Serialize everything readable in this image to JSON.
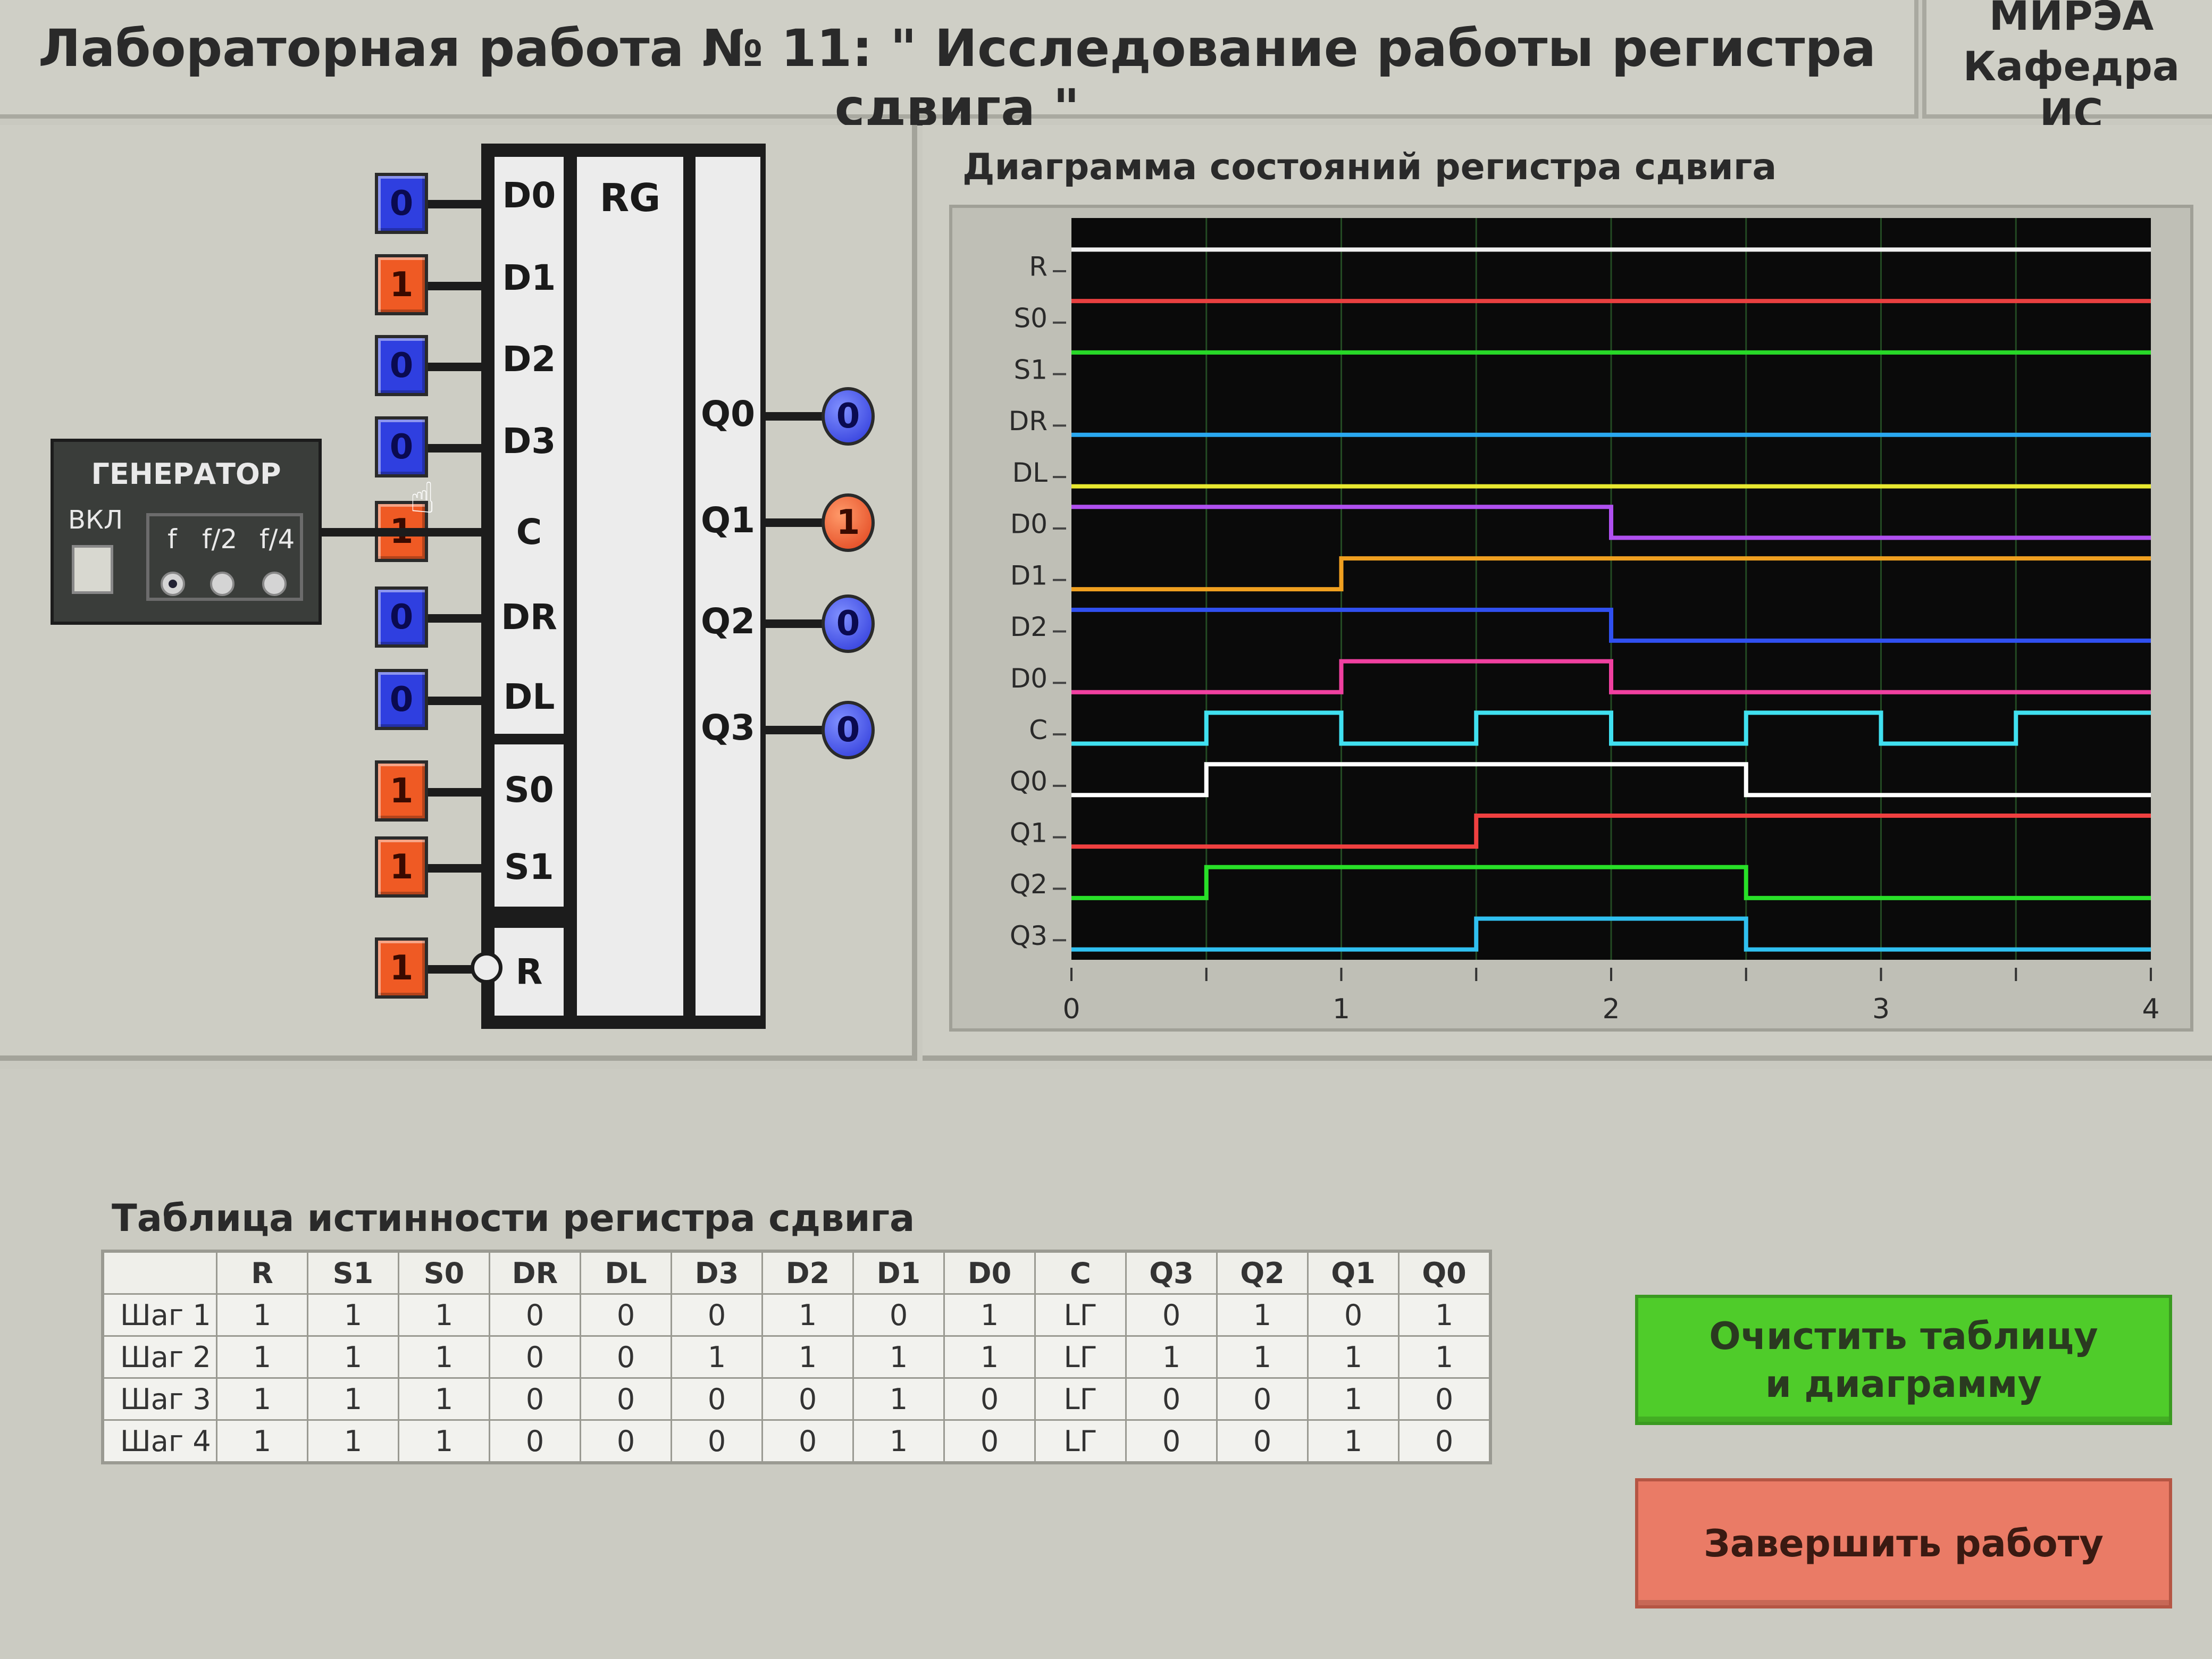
{
  "header": {
    "title": "Лабораторная работа № 11: \" Исследование работы регистра сдвига \"",
    "org_line1": "МИРЭА",
    "org_line2": "Кафедра ИС"
  },
  "generator": {
    "title": "ГЕНЕРАТОР",
    "switch_label": "ВКЛ",
    "freq_options": [
      "f",
      "f/2",
      "f/4"
    ],
    "selected": "f"
  },
  "register": {
    "name": "RG",
    "inputs": [
      {
        "pin": "D0",
        "value": "0"
      },
      {
        "pin": "D1",
        "value": "1"
      },
      {
        "pin": "D2",
        "value": "0"
      },
      {
        "pin": "D3",
        "value": "0"
      },
      {
        "pin": "C",
        "value": "1"
      },
      {
        "pin": "DR",
        "value": "0"
      },
      {
        "pin": "DL",
        "value": "0"
      },
      {
        "pin": "S0",
        "value": "1"
      },
      {
        "pin": "S1",
        "value": "1"
      },
      {
        "pin": "R",
        "value": "1"
      }
    ],
    "outputs": [
      {
        "pin": "Q0",
        "value": "0"
      },
      {
        "pin": "Q1",
        "value": "1"
      },
      {
        "pin": "Q2",
        "value": "0"
      },
      {
        "pin": "Q3",
        "value": "0"
      }
    ]
  },
  "chart_data": {
    "type": "line",
    "title": "Диаграмма состояний регистра сдвига",
    "xlim": [
      0,
      4
    ],
    "x_ticks": [
      "0",
      "1",
      "2",
      "3",
      "4"
    ],
    "signal_labels": [
      "R",
      "S0",
      "S1",
      "DR",
      "DL",
      "D0",
      "D1",
      "D2",
      "D0",
      "C",
      "Q0",
      "Q1",
      "Q2",
      "Q3"
    ],
    "series": [
      {
        "name": "R",
        "color": "#f0f0f0",
        "steps": [
          [
            0,
            1
          ],
          [
            4,
            1
          ]
        ]
      },
      {
        "name": "S0",
        "color": "#e84040",
        "steps": [
          [
            0,
            1
          ],
          [
            4,
            1
          ]
        ]
      },
      {
        "name": "S1",
        "color": "#28d828",
        "steps": [
          [
            0,
            1
          ],
          [
            4,
            1
          ]
        ]
      },
      {
        "name": "DR",
        "color": "#2aa8f0",
        "steps": [
          [
            0,
            0
          ],
          [
            4,
            0
          ]
        ]
      },
      {
        "name": "DL",
        "color": "#e8e830",
        "steps": [
          [
            0,
            0
          ],
          [
            4,
            0
          ]
        ]
      },
      {
        "name": "D0",
        "color": "#b050f0",
        "steps": [
          [
            0,
            1
          ],
          [
            2,
            0
          ],
          [
            4,
            0
          ]
        ]
      },
      {
        "name": "D1",
        "color": "#f0a020",
        "steps": [
          [
            0,
            0
          ],
          [
            1,
            1
          ],
          [
            4,
            1
          ]
        ]
      },
      {
        "name": "D2",
        "color": "#3050f0",
        "steps": [
          [
            0,
            1
          ],
          [
            2,
            0
          ],
          [
            4,
            0
          ]
        ]
      },
      {
        "name": "D0",
        "color": "#f040a0",
        "steps": [
          [
            0,
            0
          ],
          [
            1,
            1
          ],
          [
            2,
            0
          ],
          [
            4,
            0
          ]
        ]
      },
      {
        "name": "C",
        "color": "#40e0f0",
        "steps": [
          [
            0,
            0
          ],
          [
            0.5,
            1
          ],
          [
            1,
            0
          ],
          [
            1.5,
            1
          ],
          [
            2,
            0
          ],
          [
            2.5,
            1
          ],
          [
            3,
            0
          ],
          [
            3.5,
            1
          ],
          [
            4,
            1
          ]
        ]
      },
      {
        "name": "Q0",
        "color": "#ffffff",
        "steps": [
          [
            0,
            0
          ],
          [
            0.5,
            1
          ],
          [
            2.5,
            0
          ],
          [
            4,
            0
          ]
        ]
      },
      {
        "name": "Q1",
        "color": "#f04040",
        "steps": [
          [
            0,
            0
          ],
          [
            1.5,
            1
          ],
          [
            4,
            1
          ]
        ]
      },
      {
        "name": "Q2",
        "color": "#28e028",
        "steps": [
          [
            0,
            0
          ],
          [
            0.5,
            1
          ],
          [
            2.5,
            0
          ],
          [
            4,
            0
          ]
        ]
      },
      {
        "name": "Q3",
        "color": "#30c0f0",
        "steps": [
          [
            0,
            0
          ],
          [
            1.5,
            1
          ],
          [
            2.5,
            0
          ],
          [
            4,
            0
          ]
        ]
      }
    ]
  },
  "truth_table": {
    "title": "Таблица истинности регистра сдвига",
    "columns": [
      "",
      "R",
      "S1",
      "S0",
      "DR",
      "DL",
      "D3",
      "D2",
      "D1",
      "D0",
      "C",
      "Q3",
      "Q2",
      "Q1",
      "Q0"
    ],
    "rows": [
      [
        "Шаг 1",
        "1",
        "1",
        "1",
        "0",
        "0",
        "0",
        "1",
        "0",
        "1",
        "LГ",
        "0",
        "1",
        "0",
        "1"
      ],
      [
        "Шаг 2",
        "1",
        "1",
        "1",
        "0",
        "0",
        "1",
        "1",
        "1",
        "1",
        "LГ",
        "1",
        "1",
        "1",
        "1"
      ],
      [
        "Шаг 3",
        "1",
        "1",
        "1",
        "0",
        "0",
        "0",
        "0",
        "1",
        "0",
        "LГ",
        "0",
        "0",
        "1",
        "0"
      ],
      [
        "Шаг 4",
        "1",
        "1",
        "1",
        "0",
        "0",
        "0",
        "0",
        "1",
        "0",
        "LГ",
        "0",
        "0",
        "1",
        "0"
      ]
    ]
  },
  "buttons": {
    "clear_line1": "Очистить таблицу",
    "clear_line2": "и диаграмму",
    "finish": "Завершить работу"
  }
}
